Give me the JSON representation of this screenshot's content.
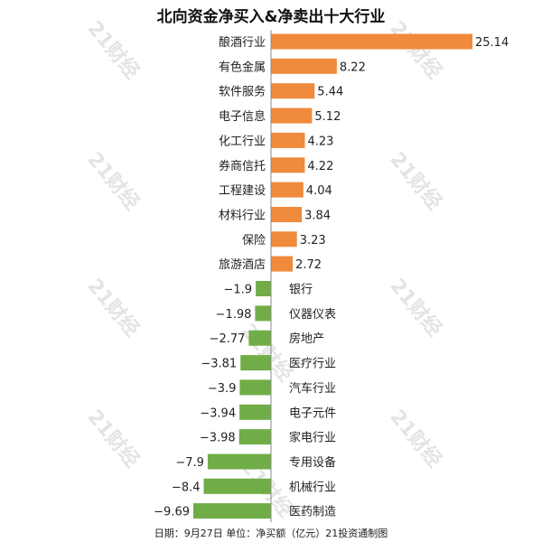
{
  "chart_data": {
    "type": "bar",
    "orientation": "horizontal",
    "title": "北向资金净买入&净卖出十大行业",
    "categories": [
      "酿酒行业",
      "有色金属",
      "软件服务",
      "电子信息",
      "化工行业",
      "券商信托",
      "工程建设",
      "材料行业",
      "保险",
      "旅游酒店",
      "银行",
      "仪器仪表",
      "房地产",
      "医疗行业",
      "汽车行业",
      "电子元件",
      "家电行业",
      "专用设备",
      "机械行业",
      "医药制造"
    ],
    "values": [
      25.14,
      8.22,
      5.44,
      5.12,
      4.23,
      4.22,
      4.04,
      3.84,
      3.23,
      2.72,
      -1.9,
      -1.98,
      -2.77,
      -3.81,
      -3.9,
      -3.94,
      -3.98,
      -7.9,
      -8.4,
      -9.69
    ],
    "value_labels": [
      "25.14",
      "8.22",
      "5.44",
      "5.12",
      "4.23",
      "4.22",
      "4.04",
      "3.84",
      "3.23",
      "2.72",
      "−1.9",
      "−1.98",
      "−2.77",
      "−3.81",
      "−3.9",
      "−3.94",
      "−3.98",
      "−7.9",
      "−8.4",
      "−9.69"
    ],
    "colors": {
      "positive": "#f08a3c",
      "negative": "#70ad47"
    },
    "grid": false,
    "legend": "none"
  },
  "watermark": "21财经",
  "footer": "日期：9月27日 单位：净买额（亿元）21投资通制图"
}
